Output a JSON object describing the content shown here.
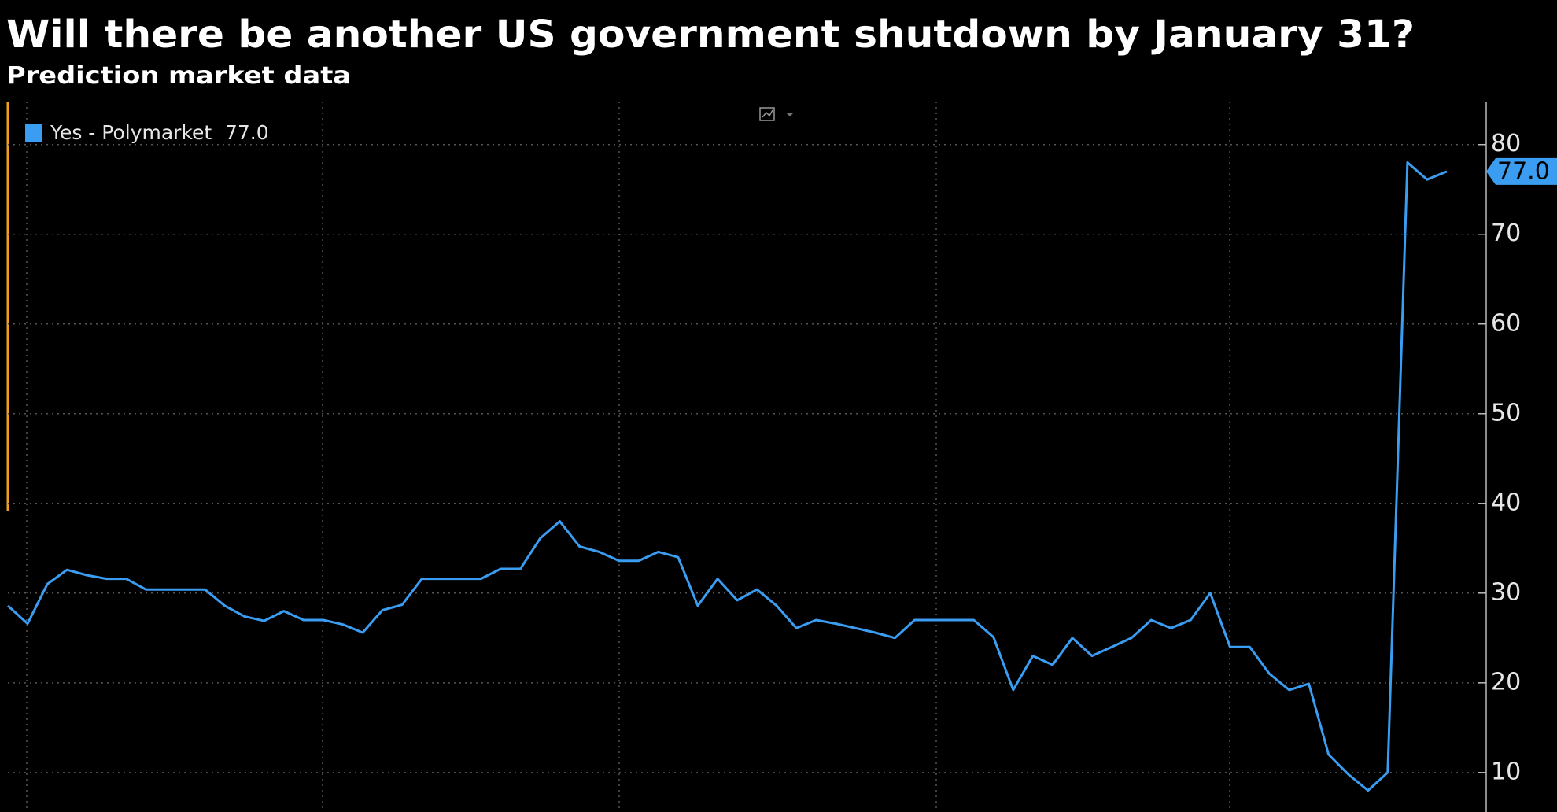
{
  "chart_data": {
    "type": "line",
    "title": "Will there be another US government shutdown by January 31?",
    "subtitle": "Prediction market data",
    "ylim": [
      5.6,
      84.8
    ],
    "yticks": [
      10,
      20,
      30,
      40,
      50,
      60,
      70,
      80
    ],
    "grid": true,
    "legend": "top-left",
    "series": [
      {
        "name": "Yes - Polymarket",
        "color": "#3b9df2",
        "last_label": "77.0",
        "values": [
          28.6,
          26.6,
          31,
          32.6,
          32,
          31.6,
          31.6,
          30.4,
          30.4,
          30.4,
          30.4,
          28.6,
          27.4,
          26.9,
          28,
          27,
          27,
          26.5,
          25.6,
          28.1,
          28.7,
          31.6,
          31.6,
          31.6,
          31.6,
          32.7,
          32.7,
          36.1,
          38,
          35.2,
          34.6,
          33.6,
          33.6,
          34.6,
          34,
          28.6,
          31.6,
          29.2,
          30.4,
          28.6,
          26.1,
          27,
          26.6,
          26.1,
          25.6,
          25,
          27,
          27,
          27,
          27,
          25.1,
          19.2,
          23,
          22,
          25,
          23,
          24,
          25,
          27,
          26.1,
          27,
          30,
          24,
          24,
          21,
          19.2,
          19.9,
          12,
          9.8,
          8,
          10,
          78,
          76.1,
          77
        ]
      }
    ]
  }
}
